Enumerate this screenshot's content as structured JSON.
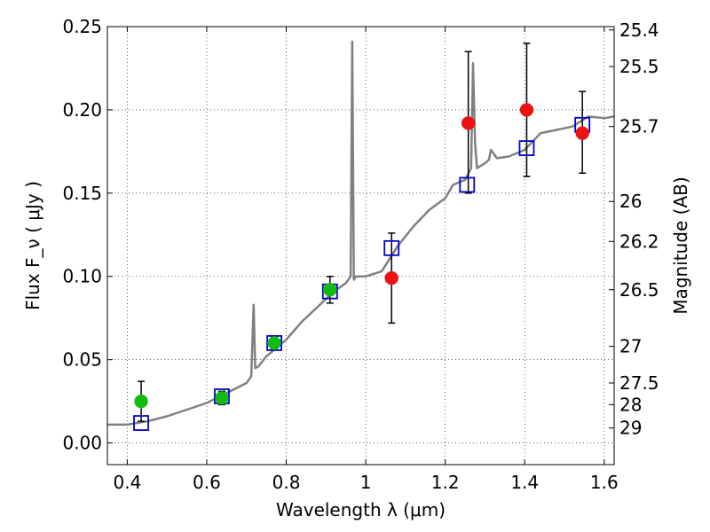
{
  "chart_data": {
    "type": "scatter",
    "xlabel": "Wavelength  λ (μm)",
    "ylabel": "Flux  F_ν  ( μJy )",
    "y2label": "Magnitude (AB)",
    "xlim": [
      0.35,
      1.625
    ],
    "ylim": [
      -0.013,
      0.25
    ],
    "grid": true,
    "x_ticks": [
      0.4,
      0.6,
      0.8,
      1.0,
      1.2,
      1.4,
      1.6
    ],
    "x_tick_labels": [
      "0.4",
      "0.6",
      "0.8",
      "1",
      "1.2",
      "1.4",
      "1.6"
    ],
    "y_ticks": [
      0.0,
      0.05,
      0.1,
      0.15,
      0.2,
      0.25
    ],
    "y_tick_labels": [
      "0.00",
      "0.05",
      "0.10",
      "0.15",
      "0.20",
      "0.25"
    ],
    "y2_ticks": [
      {
        "label": "25.4",
        "flux": 0.248
      },
      {
        "label": "25.5",
        "flux": 0.226
      },
      {
        "label": "25.7",
        "flux": 0.19
      },
      {
        "label": "26",
        "flux": 0.145
      },
      {
        "label": "26.2",
        "flux": 0.121
      },
      {
        "label": "26.5",
        "flux": 0.092
      },
      {
        "label": "27",
        "flux": 0.058
      },
      {
        "label": "27.5",
        "flux": 0.036
      },
      {
        "label": "28",
        "flux": 0.023
      },
      {
        "label": "29",
        "flux": 0.009
      }
    ],
    "series": [
      {
        "kind": "line",
        "color": "#808080",
        "x": [
          0.35,
          0.4,
          0.45,
          0.5,
          0.55,
          0.6,
          0.65,
          0.7,
          0.712,
          0.718,
          0.722,
          0.73,
          0.75,
          0.78,
          0.8,
          0.84,
          0.88,
          0.92,
          0.95,
          0.962,
          0.966,
          0.97,
          0.975,
          1.0,
          1.04,
          1.08,
          1.12,
          1.16,
          1.2,
          1.22,
          1.25,
          1.265,
          1.27,
          1.275,
          1.28,
          1.3,
          1.31,
          1.315,
          1.33,
          1.36,
          1.4,
          1.44,
          1.48,
          1.52,
          1.56,
          1.6,
          1.625
        ],
        "y": [
          0.011,
          0.011,
          0.013,
          0.016,
          0.02,
          0.024,
          0.03,
          0.036,
          0.04,
          0.083,
          0.045,
          0.046,
          0.052,
          0.058,
          0.062,
          0.073,
          0.082,
          0.091,
          0.096,
          0.1,
          0.241,
          0.098,
          0.1,
          0.1,
          0.103,
          0.118,
          0.13,
          0.14,
          0.147,
          0.155,
          0.158,
          0.165,
          0.228,
          0.18,
          0.165,
          0.168,
          0.17,
          0.176,
          0.171,
          0.172,
          0.176,
          0.186,
          0.188,
          0.19,
          0.196,
          0.195,
          0.196
        ]
      },
      {
        "kind": "squares",
        "color": "#0000cc",
        "x": [
          0.435,
          0.638,
          0.77,
          0.91,
          1.065,
          1.255,
          1.405,
          1.545
        ],
        "y": [
          0.012,
          0.028,
          0.06,
          0.091,
          0.117,
          0.155,
          0.177,
          0.191
        ]
      },
      {
        "kind": "points",
        "color": "#11bb11",
        "x": [
          0.435,
          0.638,
          0.77,
          0.91
        ],
        "y": [
          0.025,
          0.027,
          0.06,
          0.092
        ],
        "yerr": [
          0.012,
          0.004,
          0.004,
          0.008
        ]
      },
      {
        "kind": "points",
        "color": "#ee1111",
        "x": [
          1.065,
          1.258,
          1.405,
          1.545
        ],
        "y": [
          0.099,
          0.192,
          0.2,
          0.186
        ],
        "yerr_low": [
          0.027,
          0.042,
          0.04,
          0.024
        ],
        "yerr_high": [
          0.027,
          0.043,
          0.04,
          0.025
        ]
      }
    ]
  }
}
